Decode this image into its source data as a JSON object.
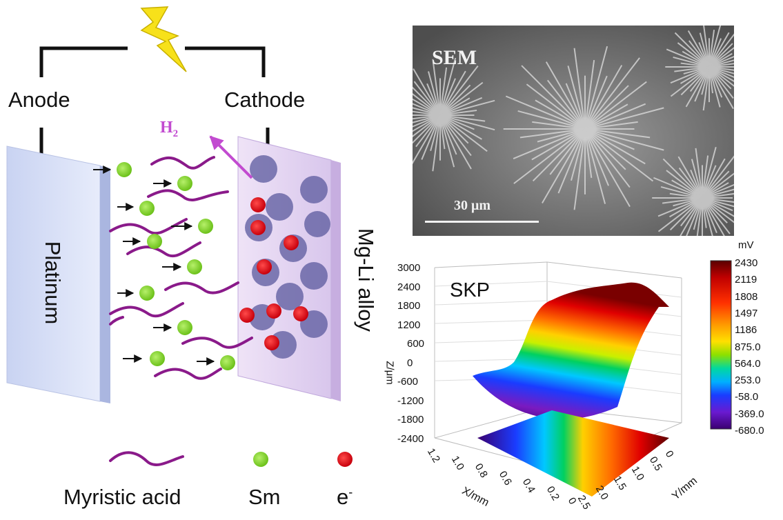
{
  "circuit": {
    "anode": "Anode",
    "cathode": "Cathode"
  },
  "electrodes": {
    "left": "Platinum",
    "right": "Mg-Li alloy"
  },
  "gas": {
    "h": "H",
    "sub": "2"
  },
  "legend": {
    "myristic": "Myristic acid",
    "sm": "Sm",
    "e": "e",
    "e_sup": "-"
  },
  "sem": {
    "title": "SEM",
    "scale": "30 μm"
  },
  "skp": {
    "title": "SKP",
    "unit": "mV",
    "z_axis_label": "Z/μm",
    "x_axis_label": "X/mm",
    "y_axis_label": "Y/mm",
    "z_ticks": [
      "3000",
      "2400",
      "1800",
      "1200",
      "600",
      "0",
      "-600",
      "-1200",
      "-1800",
      "-2400"
    ],
    "x_ticks": [
      "1.2",
      "1.0",
      "0.8",
      "0.6",
      "0.4",
      "0.2",
      "0"
    ],
    "y_ticks": [
      "0",
      "0.5",
      "1.0",
      "1.5",
      "2.0",
      "2.5"
    ],
    "colorbar": [
      "2430",
      "2119",
      "1808",
      "1497",
      "1186",
      "875.0",
      "564.0",
      "253.0",
      "-58.0",
      "-369.0",
      "-680.0"
    ]
  },
  "colors": {
    "sm": "#7ed321",
    "electron": "#e0101c",
    "acid": "#8a1a8a",
    "bolt": "#f7e11a"
  }
}
